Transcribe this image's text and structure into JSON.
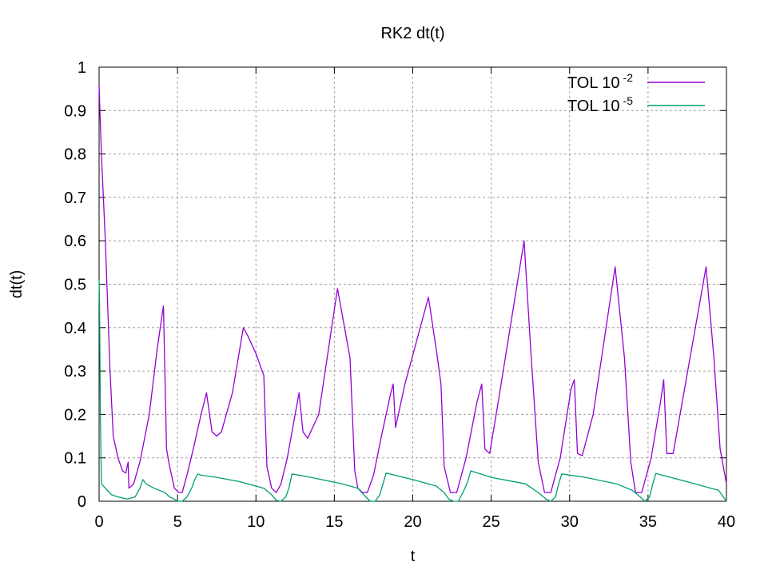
{
  "chart_data": {
    "type": "line",
    "title": "RK2 dt(t)",
    "xlabel": "t",
    "ylabel": "dt(t)",
    "xlim": [
      0,
      40
    ],
    "ylim": [
      0,
      1
    ],
    "xticks": [
      0,
      5,
      10,
      15,
      20,
      25,
      30,
      35,
      40
    ],
    "yticks": [
      0,
      0.1,
      0.2,
      0.3,
      0.4,
      0.5,
      0.6,
      0.7,
      0.8,
      0.9,
      1
    ],
    "xtick_labels": [
      "0",
      "5",
      "10",
      "15",
      "20",
      "25",
      "30",
      "35",
      "40"
    ],
    "ytick_labels": [
      "0",
      "0.1",
      "0.2",
      "0.3",
      "0.4",
      "0.5",
      "0.6",
      "0.7",
      "0.8",
      "0.9",
      "1"
    ],
    "grid": true,
    "legend_position": "top-right",
    "series": [
      {
        "name": "TOL 10",
        "exponent": "-2",
        "color": "#9400d3",
        "x": [
          0,
          0.05,
          0.15,
          0.4,
          0.7,
          0.9,
          1.2,
          1.5,
          1.7,
          1.85,
          1.9,
          2.2,
          2.6,
          3.2,
          3.7,
          4.1,
          4.3,
          4.5,
          4.8,
          5.1,
          5.3,
          5.6,
          6.0,
          6.5,
          6.85,
          7.2,
          7.5,
          7.8,
          8.5,
          9.2,
          9.5,
          10.0,
          10.4,
          10.5,
          10.7,
          11.0,
          11.3,
          11.6,
          12.0,
          12.5,
          12.75,
          13.0,
          13.3,
          14.0,
          15.2,
          16.0,
          16.3,
          16.5,
          16.8,
          17.1,
          17.5,
          18.0,
          18.6,
          18.75,
          18.9,
          19.5,
          21.0,
          21.5,
          21.8,
          22.0,
          22.4,
          22.8,
          23.4,
          24.1,
          24.4,
          24.6,
          24.9,
          25.5,
          27.1,
          27.5,
          28.0,
          28.4,
          28.8,
          29.4,
          30.1,
          30.3,
          30.5,
          30.8,
          31.5,
          32.9,
          33.5,
          33.9,
          34.2,
          34.6,
          35.2,
          35.8,
          36.0,
          36.2,
          36.6,
          38.7,
          39.2,
          39.6,
          40.0
        ],
        "y": [
          0.96,
          0.9,
          0.8,
          0.6,
          0.3,
          0.15,
          0.1,
          0.07,
          0.065,
          0.09,
          0.03,
          0.04,
          0.09,
          0.2,
          0.35,
          0.45,
          0.12,
          0.08,
          0.03,
          0.02,
          0.02,
          0.06,
          0.12,
          0.2,
          0.25,
          0.16,
          0.15,
          0.16,
          0.25,
          0.4,
          0.38,
          0.34,
          0.3,
          0.29,
          0.08,
          0.03,
          0.02,
          0.04,
          0.1,
          0.2,
          0.25,
          0.16,
          0.145,
          0.2,
          0.49,
          0.33,
          0.07,
          0.03,
          0.02,
          0.02,
          0.06,
          0.15,
          0.25,
          0.27,
          0.17,
          0.27,
          0.47,
          0.35,
          0.27,
          0.08,
          0.02,
          0.02,
          0.1,
          0.23,
          0.27,
          0.12,
          0.11,
          0.24,
          0.6,
          0.36,
          0.09,
          0.02,
          0.02,
          0.1,
          0.26,
          0.28,
          0.11,
          0.105,
          0.2,
          0.54,
          0.33,
          0.09,
          0.02,
          0.02,
          0.1,
          0.23,
          0.28,
          0.11,
          0.11,
          0.54,
          0.33,
          0.12,
          0.04
        ]
      },
      {
        "name": "TOL 10",
        "exponent": "-5",
        "color": "#009e73",
        "x": [
          0,
          0.03,
          0.08,
          0.15,
          0.4,
          0.8,
          1.2,
          1.8,
          2.3,
          2.6,
          2.8,
          3.0,
          3.5,
          4.2,
          4.5,
          4.8,
          5.0,
          5.3,
          5.6,
          5.9,
          6.1,
          6.3,
          6.5,
          7.5,
          9.0,
          10.5,
          11.0,
          11.3,
          11.6,
          11.9,
          12.1,
          12.3,
          13.5,
          15.5,
          16.5,
          17.0,
          17.3,
          17.6,
          17.9,
          18.1,
          18.3,
          20.0,
          21.5,
          22.0,
          22.3,
          22.6,
          22.9,
          23.2,
          23.5,
          23.7,
          25.0,
          27.2,
          28.0,
          28.5,
          28.8,
          29.1,
          29.3,
          29.5,
          31.0,
          33.0,
          34.0,
          34.5,
          34.8,
          35.1,
          35.3,
          35.5,
          37.5,
          39.5,
          40.0
        ],
        "y": [
          0.51,
          0.45,
          0.2,
          0.04,
          0.03,
          0.015,
          0.01,
          0.005,
          0.01,
          0.03,
          0.05,
          0.04,
          0.03,
          0.02,
          0.01,
          0.005,
          0.0,
          0.0,
          0.01,
          0.03,
          0.05,
          0.063,
          0.06,
          0.055,
          0.045,
          0.03,
          0.015,
          0.002,
          0.0,
          0.01,
          0.03,
          0.063,
          0.055,
          0.04,
          0.03,
          0.01,
          0.0,
          0.0,
          0.015,
          0.04,
          0.065,
          0.05,
          0.035,
          0.02,
          0.005,
          0.0,
          0.0,
          0.02,
          0.045,
          0.07,
          0.055,
          0.04,
          0.02,
          0.005,
          0.0,
          0.01,
          0.04,
          0.063,
          0.055,
          0.04,
          0.025,
          0.01,
          0.0,
          0.01,
          0.04,
          0.064,
          0.045,
          0.025,
          0.0
        ]
      }
    ]
  }
}
